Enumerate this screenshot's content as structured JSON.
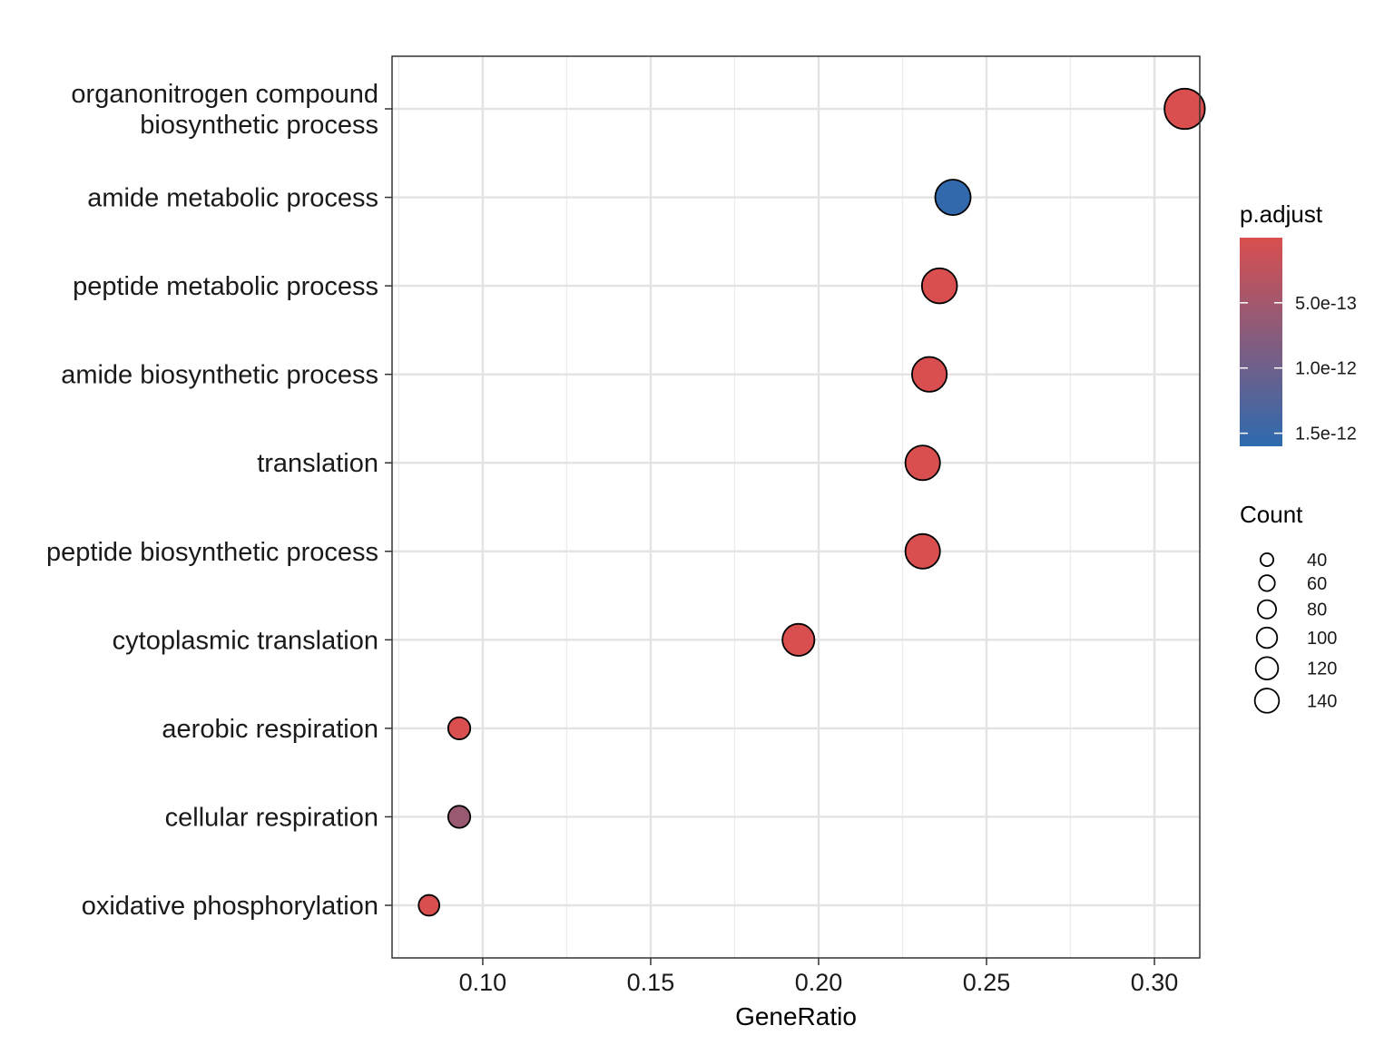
{
  "chart_data": {
    "type": "scatter",
    "xlabel": "GeneRatio",
    "xlim": [
      0.073,
      0.3135
    ],
    "x_ticks": [
      {
        "value": 0.1,
        "label": "0.10"
      },
      {
        "value": 0.15,
        "label": "0.15"
      },
      {
        "value": 0.2,
        "label": "0.20"
      },
      {
        "value": 0.25,
        "label": "0.25"
      },
      {
        "value": 0.3,
        "label": "0.30"
      }
    ],
    "grid": true,
    "points": [
      {
        "term": [
          "organonitrogen compound",
          "biosynthetic process"
        ],
        "gene_ratio": 0.309,
        "count": 140,
        "p_adjust": 1e-15
      },
      {
        "term": [
          "amide metabolic process"
        ],
        "gene_ratio": 0.24,
        "count": 108,
        "p_adjust": 1.55e-12
      },
      {
        "term": [
          "peptide metabolic process"
        ],
        "gene_ratio": 0.236,
        "count": 106,
        "p_adjust": 1e-15
      },
      {
        "term": [
          "amide biosynthetic process"
        ],
        "gene_ratio": 0.233,
        "count": 104,
        "p_adjust": 1e-15
      },
      {
        "term": [
          "translation"
        ],
        "gene_ratio": 0.231,
        "count": 103,
        "p_adjust": 1e-15
      },
      {
        "term": [
          "peptide biosynthetic process"
        ],
        "gene_ratio": 0.231,
        "count": 103,
        "p_adjust": 1e-15
      },
      {
        "term": [
          "cytoplasmic translation"
        ],
        "gene_ratio": 0.194,
        "count": 88,
        "p_adjust": 1e-15
      },
      {
        "term": [
          "aerobic respiration"
        ],
        "gene_ratio": 0.093,
        "count": 42,
        "p_adjust": 1e-15
      },
      {
        "term": [
          "cellular respiration"
        ],
        "gene_ratio": 0.093,
        "count": 42,
        "p_adjust": 6e-13
      },
      {
        "term": [
          "oxidative phosphorylation"
        ],
        "gene_ratio": 0.084,
        "count": 37,
        "p_adjust": 1e-15
      }
    ],
    "color_legend": {
      "title": "p.adjust",
      "low_color": "#d94f4f",
      "high_color": "#2d6aaf",
      "range": [
        1e-15,
        1.6e-12
      ],
      "ticks": [
        {
          "value": 5e-13,
          "label": "5.0e-13"
        },
        {
          "value": 1e-12,
          "label": "1.0e-12"
        },
        {
          "value": 1.5e-12,
          "label": "1.5e-12"
        }
      ]
    },
    "size_legend": {
      "title": "Count",
      "entries": [
        {
          "value": 40,
          "label": "40"
        },
        {
          "value": 60,
          "label": "60"
        },
        {
          "value": 80,
          "label": "80"
        },
        {
          "value": 100,
          "label": "100"
        },
        {
          "value": 120,
          "label": "120"
        },
        {
          "value": 140,
          "label": "140"
        }
      ]
    }
  }
}
